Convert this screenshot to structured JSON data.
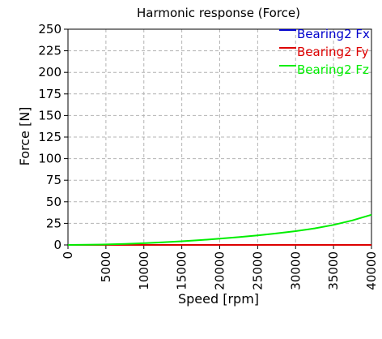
{
  "chart_data": {
    "type": "line",
    "title": "Harmonic response (Force)",
    "xlabel": "Speed [rpm]",
    "ylabel": "Force [N]",
    "xlim": [
      0,
      40000
    ],
    "ylim": [
      0,
      250
    ],
    "grid": true,
    "legend_position": "top-right",
    "x_ticks": [
      "0",
      "5000",
      "10000",
      "15000",
      "20000",
      "25000",
      "30000",
      "35000",
      "40000"
    ],
    "y_ticks": [
      "0",
      "25",
      "50",
      "75",
      "100",
      "125",
      "150",
      "175",
      "200",
      "225",
      "250"
    ],
    "x": [
      0,
      2500,
      5000,
      7500,
      10000,
      12500,
      15000,
      17500,
      20000,
      22500,
      25000,
      27500,
      30000,
      32500,
      35000,
      37500,
      40000
    ],
    "series": [
      {
        "name": "Bearing2 Fx",
        "color": "#0000cc",
        "values": [
          0,
          0,
          0,
          0,
          0,
          0,
          0,
          0,
          0,
          0,
          0,
          0,
          0,
          0,
          0,
          0,
          0
        ]
      },
      {
        "name": "Bearing2 Fy",
        "color": "#dd0000",
        "values": [
          0,
          0,
          0,
          0,
          0,
          0,
          0,
          0,
          0,
          0,
          0,
          0,
          0,
          0,
          0,
          0,
          0
        ]
      },
      {
        "name": "Bearing2 Fz",
        "color": "#00ee00",
        "values": [
          0,
          0.2,
          0.6,
          1.2,
          2.0,
          3.0,
          4.2,
          5.6,
          7.2,
          9.0,
          11.0,
          13.3,
          16.0,
          19.2,
          23.2,
          28.5,
          35.0
        ]
      }
    ]
  }
}
